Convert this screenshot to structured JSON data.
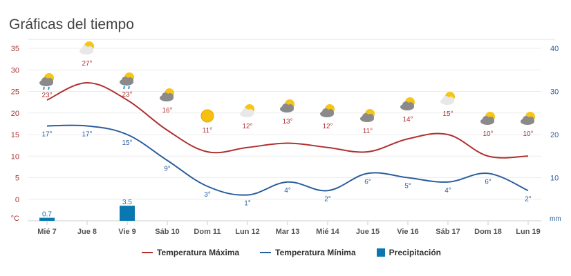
{
  "title": "Gráficas del tiempo",
  "chart_data": {
    "type": "line",
    "categories": [
      "Mié 7",
      "Jue 8",
      "Vie 9",
      "Sáb 10",
      "Dom 11",
      "Lun 12",
      "Mar 13",
      "Mié 14",
      "Jue 15",
      "Vie 16",
      "Sáb 17",
      "Dom 18",
      "Lun 19"
    ],
    "left_axis": {
      "unit": "°C",
      "ticks": [
        0,
        5,
        10,
        15,
        20,
        25,
        30,
        35
      ],
      "range": [
        -5,
        35
      ]
    },
    "right_axis": {
      "unit": "mm",
      "ticks": [
        10,
        20,
        30,
        40
      ],
      "range": [
        0,
        40
      ]
    },
    "grid": true,
    "legend_placement": "bottom",
    "series": [
      {
        "name": "Temperatura Máxima",
        "axis": "left",
        "color": "#b03030",
        "values": [
          23,
          27,
          23,
          16,
          11,
          12,
          13,
          12,
          11,
          14,
          15,
          10,
          10
        ]
      },
      {
        "name": "Temperatura Mínima",
        "axis": "left",
        "color": "#2a5d9c",
        "values": [
          17,
          17,
          15,
          9,
          3,
          1,
          4,
          2,
          6,
          5,
          4,
          6,
          2
        ]
      },
      {
        "name": "Precipitación",
        "type": "bar",
        "axis": "right",
        "color": "#0a78b0",
        "values": [
          0.7,
          null,
          3.5,
          null,
          null,
          null,
          null,
          null,
          null,
          null,
          null,
          null,
          null
        ],
        "labels": [
          "0.7",
          "",
          "3.5",
          "",
          "",
          "",
          "",
          "",
          "",
          "",
          "",
          "",
          ""
        ]
      }
    ],
    "icons": [
      "sun-cloud-rain-icon",
      "sun-light-cloud-icon",
      "sun-cloud-rain-icon",
      "sun-dark-cloud-icon",
      "sun-icon",
      "sun-light-cloud-icon",
      "sun-dark-cloud-icon",
      "sun-dark-cloud-icon",
      "sun-dark-cloud-icon",
      "sun-dark-cloud-icon",
      "sun-light-cloud-icon",
      "sun-dark-cloud-icon",
      "sun-dark-cloud-icon"
    ]
  }
}
